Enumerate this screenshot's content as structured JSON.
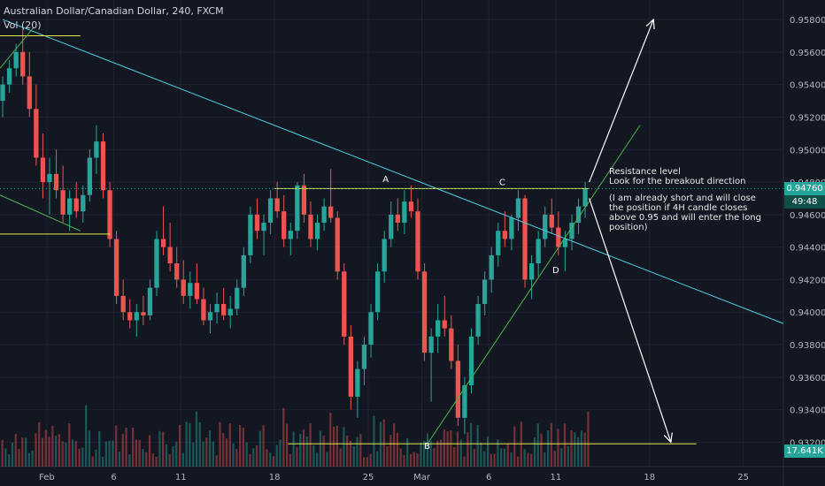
{
  "header": {
    "symbol_line": "Australian Dollar/Canadian Dollar, 240, FXCM",
    "volume_line": "Vol (20)"
  },
  "price_badge": {
    "value": "0.94760",
    "countdown": "49:48",
    "color": "#26a69a"
  },
  "volume_badge": {
    "value": "17.641K",
    "color": "#26a69a"
  },
  "annotations": {
    "note_title": "Resistance level",
    "note_sub": "Look for the breakout direction",
    "note_body_1": "(I am already short and will close",
    "note_body_2": "the position if 4H candle closes",
    "note_body_3": "above 0.95 and will enter the long",
    "note_body_4": "position)"
  },
  "colors": {
    "background": "#131722",
    "up": "#26a69a",
    "down": "#ef5350",
    "trendline_cyan": "#4dd0e1",
    "level_yellow": "#e8e84a",
    "line_green": "#4caf50",
    "arrow": "#ffffff",
    "axis_text": "#b2b5be"
  },
  "chart_data": {
    "type": "candlestick",
    "title": "Australian Dollar/Canadian Dollar, 240, FXCM",
    "ylim": [
      0.9305,
      0.9592
    ],
    "y_ticks": [
      0.958,
      0.956,
      0.954,
      0.952,
      0.95,
      0.948,
      0.946,
      0.944,
      0.942,
      0.94,
      0.938,
      0.936,
      0.934,
      0.932
    ],
    "y_tick_labels": [
      "0.95800",
      "0.95600",
      "0.95400",
      "0.95200",
      "0.95000",
      "0.94800",
      "0.94600",
      "0.94400",
      "0.94200",
      "0.94000",
      "0.93800",
      "0.93600",
      "0.93400",
      "0.93200"
    ],
    "x_ticks": [
      "Feb",
      "6",
      "11",
      "18",
      "25",
      "Mar",
      "6",
      "11",
      "18",
      "25"
    ],
    "x_tick_days": [
      0,
      5,
      10,
      17,
      24,
      28,
      33,
      38,
      45,
      52
    ],
    "x_range_days": [
      -3.5,
      55.0
    ],
    "last_price": 0.9476,
    "ohlc": [
      [
        -3.3,
        0.953,
        0.9545,
        0.952,
        0.954
      ],
      [
        -2.8,
        0.954,
        0.9555,
        0.9535,
        0.955
      ],
      [
        -2.3,
        0.955,
        0.9565,
        0.9545,
        0.956
      ],
      [
        -1.8,
        0.956,
        0.9575,
        0.954,
        0.9545
      ],
      [
        -1.3,
        0.9545,
        0.956,
        0.952,
        0.9525
      ],
      [
        -0.8,
        0.9525,
        0.954,
        0.949,
        0.9495
      ],
      [
        -0.3,
        0.9495,
        0.951,
        0.947,
        0.948
      ],
      [
        0.2,
        0.948,
        0.9495,
        0.946,
        0.9485
      ],
      [
        0.7,
        0.9485,
        0.95,
        0.947,
        0.9475
      ],
      [
        1.2,
        0.9475,
        0.949,
        0.9455,
        0.946
      ],
      [
        1.7,
        0.946,
        0.9475,
        0.945,
        0.947
      ],
      [
        2.2,
        0.947,
        0.948,
        0.9458,
        0.9462
      ],
      [
        2.7,
        0.9462,
        0.9478,
        0.9455,
        0.9472
      ],
      [
        3.2,
        0.9472,
        0.95,
        0.9468,
        0.9495
      ],
      [
        3.7,
        0.9495,
        0.9515,
        0.9485,
        0.9505
      ],
      [
        4.2,
        0.9505,
        0.951,
        0.947,
        0.9475
      ],
      [
        4.7,
        0.9475,
        0.948,
        0.944,
        0.9445
      ],
      [
        5.2,
        0.9445,
        0.945,
        0.9405,
        0.941
      ],
      [
        5.7,
        0.941,
        0.942,
        0.9395,
        0.94
      ],
      [
        6.2,
        0.94,
        0.9408,
        0.939,
        0.9395
      ],
      [
        6.7,
        0.9395,
        0.9405,
        0.9385,
        0.94
      ],
      [
        7.2,
        0.94,
        0.941,
        0.9392,
        0.9398
      ],
      [
        7.7,
        0.9398,
        0.942,
        0.9395,
        0.9415
      ],
      [
        8.2,
        0.9415,
        0.945,
        0.941,
        0.9445
      ],
      [
        8.7,
        0.9445,
        0.9465,
        0.9435,
        0.944
      ],
      [
        9.2,
        0.944,
        0.9455,
        0.9425,
        0.943
      ],
      [
        9.7,
        0.943,
        0.944,
        0.9415,
        0.942
      ],
      [
        10.2,
        0.942,
        0.9432,
        0.9405,
        0.941
      ],
      [
        10.7,
        0.941,
        0.9425,
        0.9402,
        0.9418
      ],
      [
        11.2,
        0.9418,
        0.943,
        0.9405,
        0.9408
      ],
      [
        11.7,
        0.9408,
        0.9415,
        0.9392,
        0.9395
      ],
      [
        12.2,
        0.9395,
        0.9405,
        0.9387,
        0.94
      ],
      [
        12.7,
        0.94,
        0.9412,
        0.9393,
        0.9405
      ],
      [
        13.2,
        0.9405,
        0.9415,
        0.9395,
        0.9398
      ],
      [
        13.7,
        0.9398,
        0.941,
        0.939,
        0.9402
      ],
      [
        14.2,
        0.9402,
        0.942,
        0.9398,
        0.9415
      ],
      [
        14.7,
        0.9415,
        0.944,
        0.941,
        0.9435
      ],
      [
        15.2,
        0.9435,
        0.9465,
        0.943,
        0.946
      ],
      [
        15.7,
        0.946,
        0.947,
        0.9445,
        0.945
      ],
      [
        16.2,
        0.945,
        0.946,
        0.9435,
        0.9455
      ],
      [
        16.7,
        0.9455,
        0.9475,
        0.9448,
        0.947
      ],
      [
        17.2,
        0.947,
        0.948,
        0.9458,
        0.9462
      ],
      [
        17.7,
        0.9462,
        0.9472,
        0.944,
        0.9445
      ],
      [
        18.2,
        0.9445,
        0.9455,
        0.9435,
        0.945
      ],
      [
        18.7,
        0.945,
        0.948,
        0.9445,
        0.9478
      ],
      [
        19.2,
        0.9478,
        0.9485,
        0.9455,
        0.946
      ],
      [
        19.7,
        0.946,
        0.9468,
        0.944,
        0.9445
      ],
      [
        20.2,
        0.9445,
        0.946,
        0.9438,
        0.9455
      ],
      [
        20.7,
        0.9455,
        0.947,
        0.945,
        0.9465
      ],
      [
        21.2,
        0.9465,
        0.9488,
        0.9455,
        0.9458
      ],
      [
        21.7,
        0.9458,
        0.9462,
        0.942,
        0.9425
      ],
      [
        22.2,
        0.9425,
        0.943,
        0.938,
        0.9385
      ],
      [
        22.7,
        0.9385,
        0.9392,
        0.934,
        0.9348
      ],
      [
        23.2,
        0.9348,
        0.937,
        0.9335,
        0.9365
      ],
      [
        23.7,
        0.9365,
        0.9385,
        0.9355,
        0.938
      ],
      [
        24.2,
        0.938,
        0.9405,
        0.9372,
        0.94
      ],
      [
        24.7,
        0.94,
        0.943,
        0.9395,
        0.9425
      ],
      [
        25.2,
        0.9425,
        0.945,
        0.9418,
        0.9445
      ],
      [
        25.7,
        0.9445,
        0.9468,
        0.944,
        0.946
      ],
      [
        26.2,
        0.946,
        0.947,
        0.945,
        0.9455
      ],
      [
        26.7,
        0.9455,
        0.9475,
        0.9448,
        0.9468
      ],
      [
        27.2,
        0.9468,
        0.9478,
        0.9458,
        0.9462
      ],
      [
        27.7,
        0.9462,
        0.947,
        0.942,
        0.9425
      ],
      [
        28.2,
        0.9425,
        0.943,
        0.937,
        0.9375
      ],
      [
        28.7,
        0.9375,
        0.939,
        0.9345,
        0.9385
      ],
      [
        29.2,
        0.9385,
        0.9405,
        0.9375,
        0.9395
      ],
      [
        29.7,
        0.9395,
        0.941,
        0.9385,
        0.939
      ],
      [
        30.2,
        0.939,
        0.9398,
        0.9365,
        0.937
      ],
      [
        30.7,
        0.937,
        0.938,
        0.933,
        0.9335
      ],
      [
        31.2,
        0.9335,
        0.936,
        0.9325,
        0.9355
      ],
      [
        31.7,
        0.9355,
        0.939,
        0.935,
        0.9385
      ],
      [
        32.2,
        0.9385,
        0.941,
        0.938,
        0.9405
      ],
      [
        32.7,
        0.9405,
        0.9425,
        0.9398,
        0.942
      ],
      [
        33.2,
        0.942,
        0.944,
        0.9412,
        0.9435
      ],
      [
        33.7,
        0.9435,
        0.9455,
        0.9428,
        0.945
      ],
      [
        34.2,
        0.945,
        0.9462,
        0.944,
        0.9445
      ],
      [
        34.7,
        0.9445,
        0.946,
        0.9438,
        0.9458
      ],
      [
        35.2,
        0.9458,
        0.9475,
        0.945,
        0.947
      ],
      [
        35.7,
        0.947,
        0.9472,
        0.9415,
        0.942
      ],
      [
        36.2,
        0.942,
        0.9435,
        0.9408,
        0.943
      ],
      [
        36.7,
        0.943,
        0.945,
        0.9422,
        0.9445
      ],
      [
        37.2,
        0.9445,
        0.9465,
        0.944,
        0.946
      ],
      [
        37.7,
        0.946,
        0.947,
        0.9448,
        0.9452
      ],
      [
        38.2,
        0.9452,
        0.9462,
        0.9435,
        0.944
      ],
      [
        38.7,
        0.944,
        0.945,
        0.9425,
        0.9445
      ],
      [
        39.2,
        0.9445,
        0.946,
        0.9438,
        0.9455
      ],
      [
        39.7,
        0.9455,
        0.947,
        0.9448,
        0.9465
      ],
      [
        40.2,
        0.9465,
        0.948,
        0.9458,
        0.9476
      ]
    ],
    "volume_ylim": [
      0,
      60
    ],
    "volume_level": 18,
    "volume_last": "17.641K",
    "drawings": {
      "descending_trendline": {
        "from": [
          -3.3,
          0.958
        ],
        "to": [
          55.0,
          0.9393
        ],
        "label": ""
      },
      "resistance_level": {
        "from": [
          17.0,
          0.9476
        ],
        "to": [
          40.5,
          0.9476
        ]
      },
      "support_level": {
        "from": [
          18.0,
          0.9319
        ],
        "to": [
          48.5,
          0.9319
        ]
      },
      "left_level_high": {
        "from": [
          -3.5,
          0.957
        ],
        "to": [
          2.5,
          0.957
        ]
      },
      "left_level_mid": {
        "from": [
          -3.5,
          0.9448
        ],
        "to": [
          4.7,
          0.9448
        ]
      },
      "left_green_upper": {
        "from": [
          -3.5,
          0.955
        ],
        "to": [
          -1.0,
          0.9575
        ]
      },
      "left_green_lower": {
        "from": [
          -3.5,
          0.9472
        ],
        "to": [
          2.5,
          0.945
        ]
      },
      "rising_support_line": {
        "from": [
          28.5,
          0.932
        ],
        "to": [
          44.3,
          0.9515
        ]
      },
      "arrow_up": {
        "from": [
          40.5,
          0.948
        ],
        "to": [
          45.3,
          0.958
        ]
      },
      "arrow_down": {
        "from": [
          40.5,
          0.947
        ],
        "to": [
          46.6,
          0.932
        ]
      }
    },
    "points": [
      {
        "label": "A",
        "day": 25.3,
        "price": 0.948
      },
      {
        "label": "C",
        "day": 34.0,
        "price": 0.9478
      },
      {
        "label": "D",
        "day": 38.0,
        "price": 0.9424
      },
      {
        "label": "B",
        "day": 28.4,
        "price": 0.9316
      }
    ]
  }
}
